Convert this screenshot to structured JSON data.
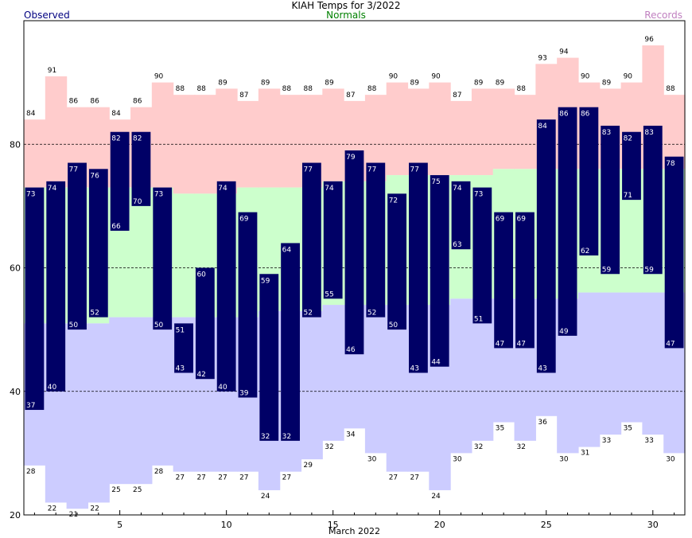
{
  "chart_data": {
    "type": "bar",
    "title": "KIAH Temps for 3/2022",
    "xlabel": "March 2022",
    "legend": {
      "observed": "Observed",
      "normals": "Normals",
      "records": "Records"
    },
    "xlim": [
      1,
      31
    ],
    "ylim": [
      20,
      100
    ],
    "x_ticks": [
      "5",
      "10",
      "15",
      "20",
      "25",
      "30"
    ],
    "y_ticks": [
      "20",
      "40",
      "60",
      "80"
    ],
    "gridlines": [
      40,
      60,
      80
    ],
    "days": [
      1,
      2,
      3,
      4,
      5,
      6,
      7,
      8,
      9,
      10,
      11,
      12,
      13,
      14,
      15,
      16,
      17,
      18,
      19,
      20,
      21,
      22,
      23,
      24,
      25,
      26,
      27,
      28,
      29,
      30,
      31
    ],
    "observed_high": [
      73,
      74,
      77,
      76,
      82,
      82,
      73,
      51,
      60,
      74,
      69,
      59,
      64,
      77,
      74,
      79,
      77,
      72,
      77,
      75,
      74,
      73,
      69,
      69,
      84,
      86,
      86,
      83,
      82,
      83,
      78
    ],
    "observed_low": [
      37,
      40,
      50,
      52,
      66,
      70,
      50,
      43,
      42,
      40,
      39,
      32,
      32,
      52,
      55,
      46,
      52,
      50,
      43,
      44,
      63,
      51,
      47,
      47,
      43,
      49,
      62,
      59,
      71,
      59,
      47
    ],
    "normal_high": [
      73,
      73,
      73,
      73,
      73,
      73,
      73,
      72,
      72,
      72,
      73,
      73,
      73,
      73,
      74,
      74,
      74,
      75,
      75,
      75,
      75,
      75,
      76,
      76,
      76,
      76,
      76,
      76,
      76,
      76,
      76
    ],
    "normal_low": [
      51,
      51,
      51,
      51,
      52,
      52,
      52,
      52,
      52,
      52,
      52,
      53,
      53,
      53,
      54,
      54,
      54,
      54,
      54,
      54,
      55,
      55,
      55,
      55,
      55,
      55,
      56,
      56,
      56,
      56,
      56
    ],
    "record_high": [
      84,
      91,
      86,
      86,
      84,
      86,
      90,
      88,
      88,
      89,
      87,
      89,
      88,
      88,
      89,
      87,
      88,
      90,
      89,
      90,
      87,
      89,
      89,
      88,
      93,
      94,
      90,
      89,
      90,
      96,
      88
    ],
    "record_low": [
      28,
      22,
      21,
      22,
      25,
      25,
      28,
      27,
      27,
      27,
      27,
      24,
      27,
      29,
      32,
      34,
      30,
      27,
      27,
      24,
      30,
      32,
      35,
      32,
      36,
      30,
      31,
      33,
      35,
      33,
      30
    ],
    "colors": {
      "observed": "#000066",
      "normal": "#ccffcc",
      "record_high": "#ffcccc",
      "record_low": "#ccccff",
      "observed_legend": "#000080",
      "normals_legend": "#008000",
      "records_legend": "#c080c0",
      "grid": "#000000"
    }
  }
}
